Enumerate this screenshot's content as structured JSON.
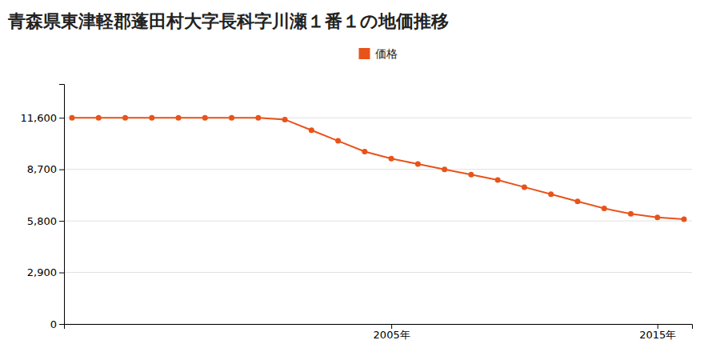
{
  "chart_data": {
    "type": "line",
    "title": "青森県東津軽郡蓬田村大字長科字川瀬１番１の地価推移",
    "x": [
      1993,
      1994,
      1995,
      1996,
      1997,
      1998,
      1999,
      2000,
      2001,
      2002,
      2003,
      2004,
      2005,
      2006,
      2007,
      2008,
      2009,
      2010,
      2011,
      2012,
      2013,
      2014,
      2015,
      2016
    ],
    "series": [
      {
        "name": "価格",
        "color": "#e8531a",
        "marker": "circle",
        "values": [
          11600,
          11600,
          11600,
          11600,
          11600,
          11600,
          11600,
          11600,
          11500,
          10900,
          10300,
          9700,
          9300,
          9000,
          8700,
          8400,
          8100,
          7700,
          7300,
          6900,
          6500,
          6200,
          6000,
          5900
        ]
      }
    ],
    "xlim": [
      1992.7,
      2016.3
    ],
    "xticks": [
      {
        "value": 2005,
        "label": "2005年"
      },
      {
        "value": 2015,
        "label": "2015年"
      }
    ],
    "ylim": [
      0,
      13500
    ],
    "yticks": [
      0,
      {
        "value": 2900,
        "label": "2,900"
      },
      {
        "value": 5800,
        "label": "5,800"
      },
      {
        "value": 8700,
        "label": "8,700"
      },
      {
        "value": 11600,
        "label": "11,600"
      }
    ],
    "grid": true,
    "legend": "top"
  }
}
